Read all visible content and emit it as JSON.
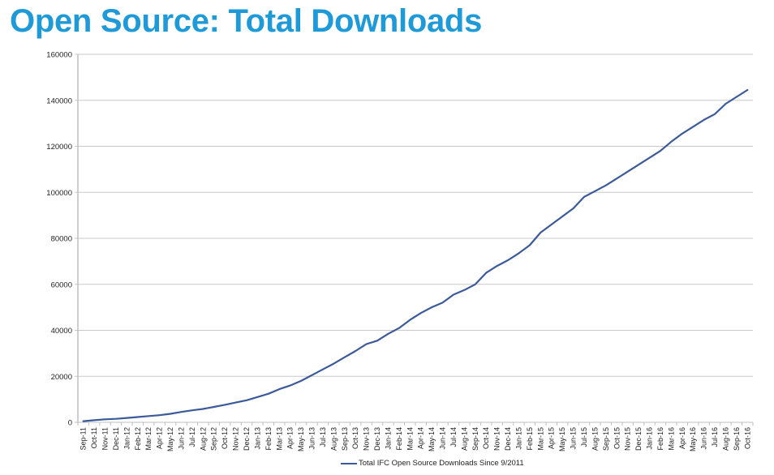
{
  "title": "Open Source: Total Downloads",
  "colors": {
    "title": "#1e9ad8",
    "line": "#3b5a99",
    "grid": "#c8c8c8",
    "axis": "#bfbfbf"
  },
  "chart_data": {
    "type": "line",
    "title": "Open Source: Total Downloads",
    "xlabel": "",
    "ylabel": "",
    "ylim": [
      0,
      160000
    ],
    "yticks": [
      0,
      20000,
      40000,
      60000,
      80000,
      100000,
      120000,
      140000,
      160000
    ],
    "grid": true,
    "legend_position": "bottom",
    "categories": [
      "Sep-11",
      "Oct-11",
      "Nov-11",
      "Dec-11",
      "Jan-12",
      "Feb-12",
      "Mar-12",
      "Apr-12",
      "May-12",
      "Jun-12",
      "Jul-12",
      "Aug-12",
      "Sep-12",
      "Oct-12",
      "Nov-12",
      "Dec-12",
      "Jan-13",
      "Feb-13",
      "Mar-13",
      "Apr-13",
      "May-13",
      "Jun-13",
      "Jul-13",
      "Aug-13",
      "Sep-13",
      "Oct-13",
      "Nov-13",
      "Dec-13",
      "Jan-14",
      "Feb-14",
      "Mar-14",
      "Apr-14",
      "May-14",
      "Jun-14",
      "Jul-14",
      "Aug-14",
      "Sep-14",
      "Oct-14",
      "Nov-14",
      "Dec-14",
      "Jan-15",
      "Feb-15",
      "Mar-15",
      "Apr-15",
      "May-15",
      "Jun-15",
      "Jul-15",
      "Aug-15",
      "Sep-15",
      "Oct-15",
      "Nov-15",
      "Dec-15",
      "Jan-16",
      "Feb-16",
      "Mar-16",
      "Apr-16",
      "May-16",
      "Jun-16",
      "Jul-16",
      "Aug-16",
      "Sep-16",
      "Oct-16"
    ],
    "series": [
      {
        "name": "Total IFC Open Source Downloads Since 9/2011",
        "values": [
          500,
          900,
          1300,
          1500,
          1900,
          2300,
          2700,
          3100,
          3700,
          4500,
          5200,
          5800,
          6700,
          7600,
          8600,
          9600,
          11000,
          12400,
          14400,
          16000,
          18000,
          20500,
          23000,
          25500,
          28300,
          31000,
          34000,
          35500,
          38500,
          41000,
          44500,
          47500,
          50000,
          52000,
          55500,
          57500,
          60000,
          65000,
          68000,
          70500,
          73500,
          77000,
          82500,
          86000,
          89500,
          93000,
          98000,
          100500,
          103000,
          106000,
          109000,
          112000,
          115000,
          118000,
          122000,
          125500,
          128500,
          131500,
          134000,
          138500,
          141500,
          144500
        ]
      }
    ]
  },
  "legend": {
    "label": "Total IFC Open Source Downloads Since 9/2011"
  }
}
